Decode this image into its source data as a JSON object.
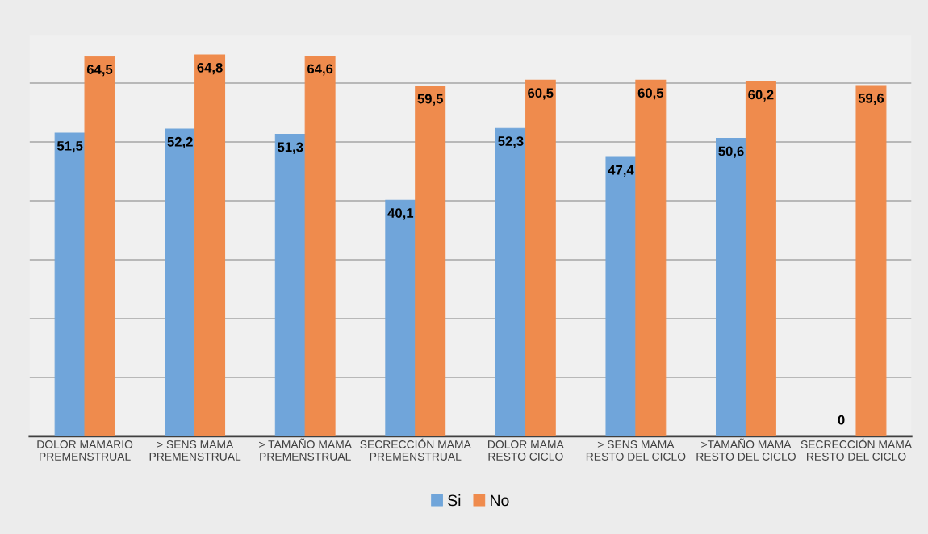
{
  "chart_data": {
    "type": "bar",
    "categories": [
      "DOLOR MAMARIO\nPREMENSTRUAL",
      "> SENS MAMA\nPREMENSTRUAL",
      "> TAMAÑO MAMA\nPREMENSTRUAL",
      "SECRECCIÓN MAMA\nPREMENSTRUAL",
      "DOLOR MAMA\nRESTO CICLO",
      "> SENS MAMA\nRESTO DEL CICLO",
      ">TAMAÑO MAMA\nRESTO DEL CICLO",
      "SECRECCIÓN MAMA\nRESTO DEL CICLO"
    ],
    "series": [
      {
        "name": "Si",
        "color": "#70a5da",
        "values": [
          51.5,
          52.2,
          51.3,
          40.1,
          52.3,
          47.4,
          50.6,
          0
        ],
        "value_labels": [
          "51,5",
          "52,2",
          "51,3",
          "40,1",
          "52,3",
          "47,4",
          "50,6",
          "0"
        ]
      },
      {
        "name": "No",
        "color": "#ef8b4d",
        "values": [
          64.5,
          64.8,
          64.6,
          59.5,
          60.5,
          60.5,
          60.2,
          59.6
        ],
        "value_labels": [
          "64,5",
          "64,8",
          "64,6",
          "59,5",
          "60,5",
          "60,5",
          "60,2",
          "59,6"
        ]
      }
    ],
    "tick_labels": "x",
    "grid": "y",
    "legend": "bottom"
  }
}
